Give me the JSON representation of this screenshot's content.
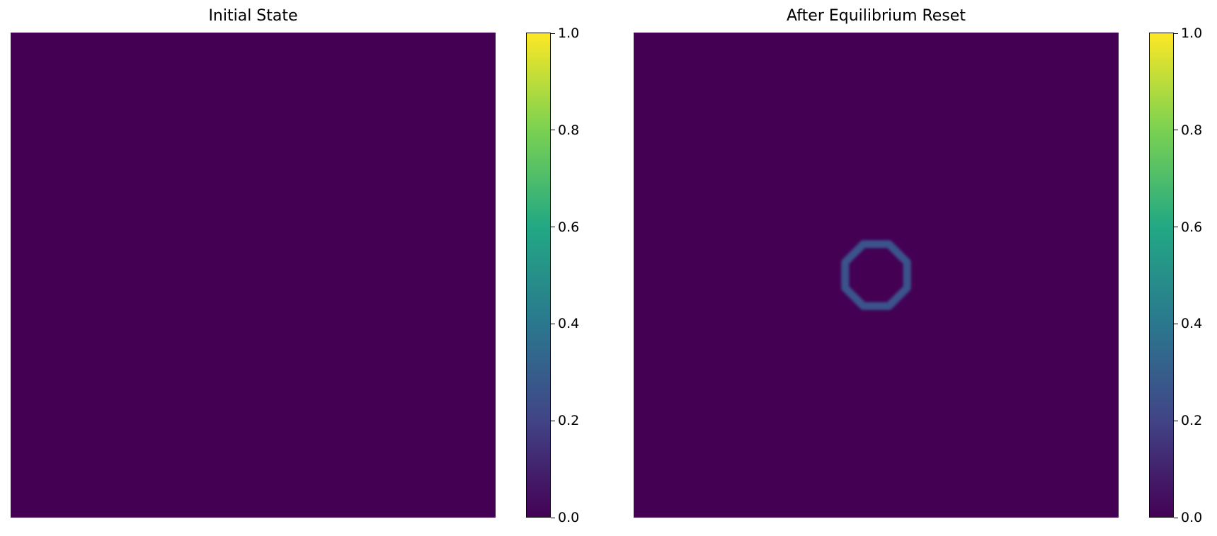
{
  "chart_data": [
    {
      "type": "heatmap",
      "title": "Initial State",
      "colormap": "viridis",
      "value_range": [
        0.0,
        1.0
      ],
      "grid": false,
      "axes_visible": false,
      "colorbar": {
        "position": "right",
        "ticks": [
          "0.0",
          "0.2",
          "0.4",
          "0.6",
          "0.8",
          "1.0"
        ],
        "tick_values": [
          0.0,
          0.2,
          0.4,
          0.6,
          0.8,
          1.0
        ]
      },
      "field": {
        "background_value": 0.0,
        "features": []
      }
    },
    {
      "type": "heatmap",
      "title": "After Equilibrium Reset",
      "colormap": "viridis",
      "value_range": [
        0.0,
        1.0
      ],
      "grid": false,
      "axes_visible": false,
      "colorbar": {
        "position": "right",
        "ticks": [
          "0.0",
          "0.2",
          "0.4",
          "0.6",
          "0.8",
          "1.0"
        ],
        "tick_values": [
          0.0,
          0.2,
          0.4,
          0.6,
          0.8,
          1.0
        ]
      },
      "field": {
        "background_value": 0.0,
        "features": [
          {
            "shape": "octagonal-ring",
            "value": 0.25,
            "center_fraction": [
              0.5,
              0.5
            ],
            "radius_fraction": 0.075
          }
        ]
      }
    }
  ],
  "colors": {
    "viridis_0.0": "#440154",
    "viridis_0.2": "#414487",
    "viridis_0.4": "#2a788e",
    "viridis_0.6": "#22a884",
    "viridis_0.8": "#7ad151",
    "viridis_1.0": "#fde725",
    "ring": "#3b528b"
  }
}
